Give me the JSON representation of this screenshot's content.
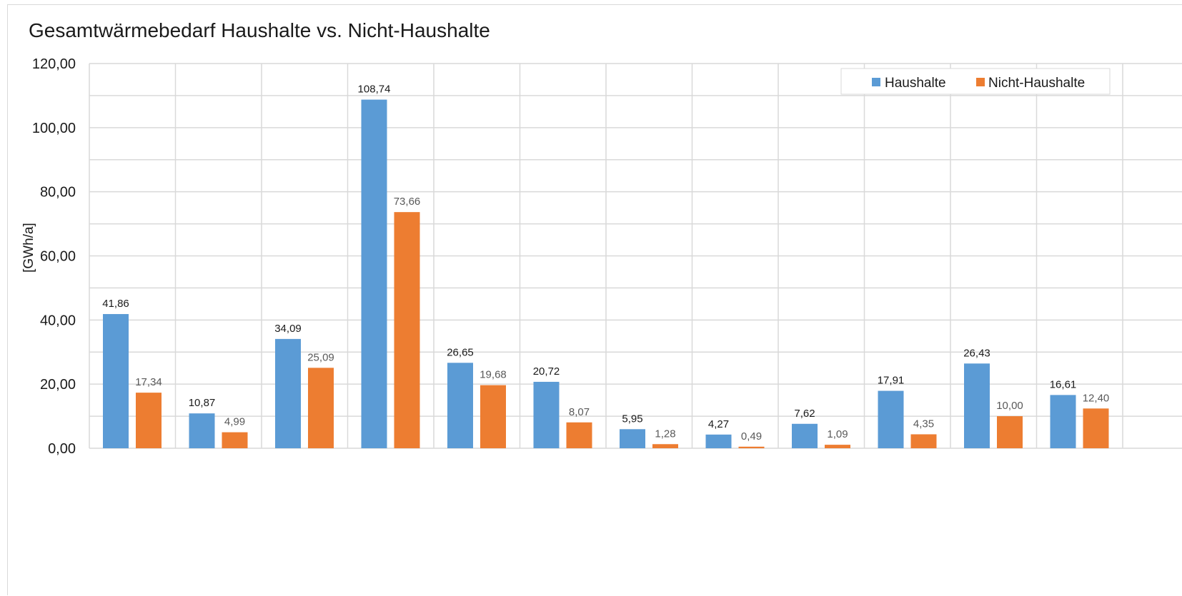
{
  "chart_data": {
    "type": "bar",
    "title": "Gesamtwärmebedarf Haushalte vs. Nicht-Haushalte",
    "xlabel": "",
    "ylabel": "[GWh/a]",
    "ylim": [
      0,
      120
    ],
    "yticks": [
      "0,00",
      "20,00",
      "40,00",
      "60,00",
      "80,00",
      "100,00",
      "120,00"
    ],
    "grid": true,
    "legend_position": "top-right",
    "categories": [
      "",
      "",
      "",
      "",
      "",
      "",
      "",
      "",
      "",
      "",
      "",
      ""
    ],
    "series": [
      {
        "name": "Haushalte",
        "color": "#5b9bd5",
        "values": [
          41.86,
          10.87,
          34.09,
          108.74,
          26.65,
          20.72,
          5.95,
          4.27,
          7.62,
          17.91,
          26.43,
          16.61
        ],
        "labels": [
          "41,86",
          "10,87",
          "34,09",
          "108,74",
          "26,65",
          "20,72",
          "5,95",
          "4,27",
          "7,62",
          "17,91",
          "26,43",
          "16,61"
        ],
        "label_color": "#1a1a1a"
      },
      {
        "name": "Nicht-Haushalte",
        "color": "#ed7d31",
        "values": [
          17.34,
          4.99,
          25.09,
          73.66,
          19.68,
          8.07,
          1.28,
          0.49,
          1.09,
          4.35,
          10.0,
          12.4
        ],
        "labels": [
          "17,34",
          "4,99",
          "25,09",
          "73,66",
          "19,68",
          "8,07",
          "1,28",
          "0,49",
          "1,09",
          "4,35",
          "10,00",
          "12,40"
        ],
        "label_color": "#595959"
      }
    ]
  }
}
